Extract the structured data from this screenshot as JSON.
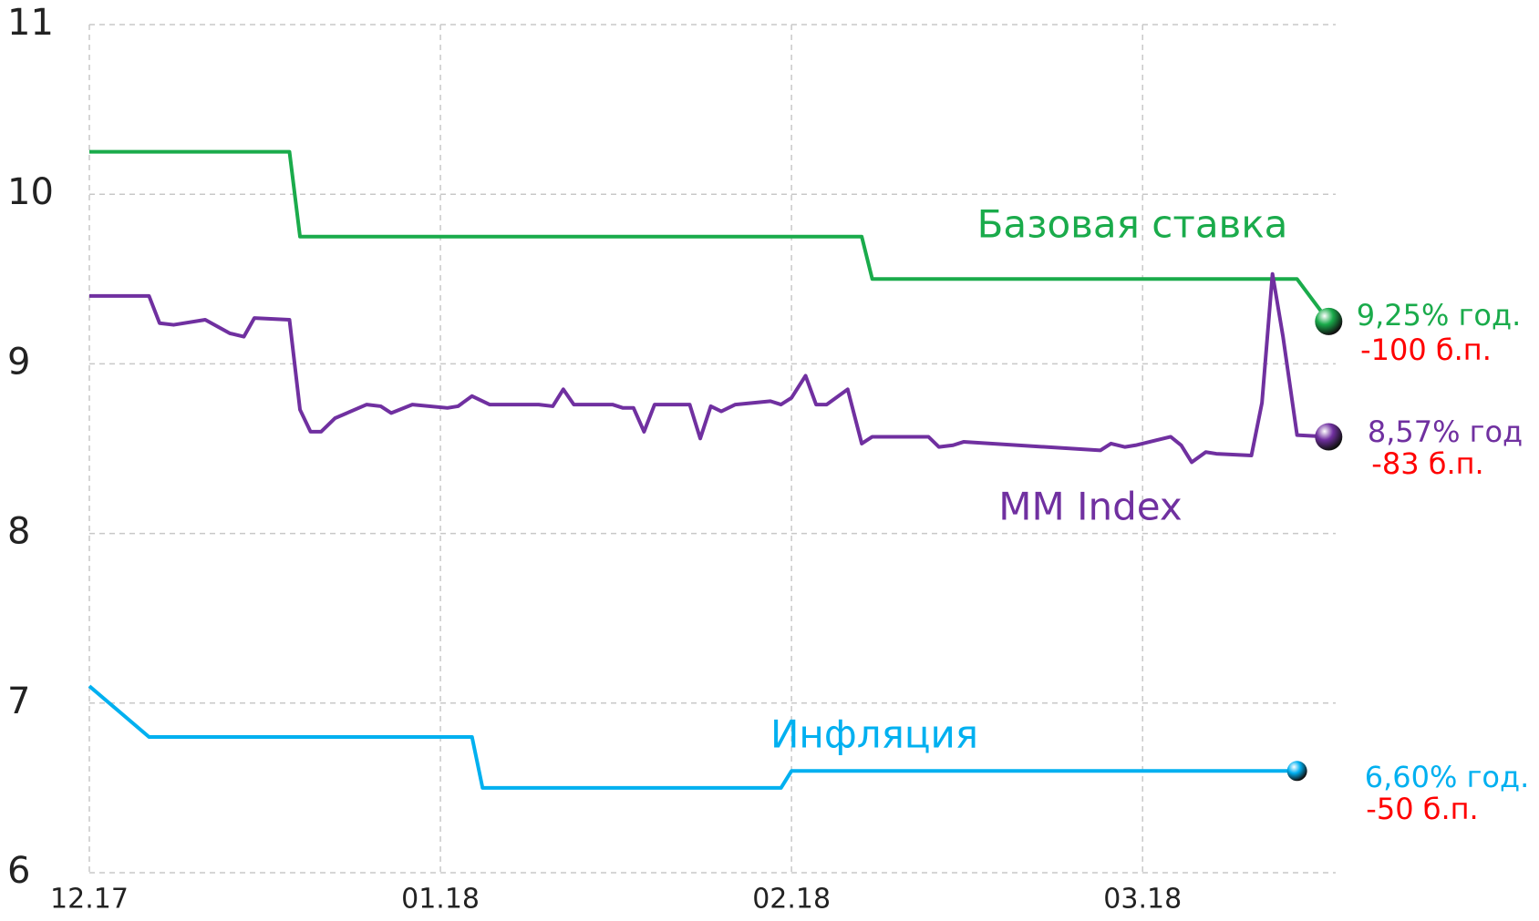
{
  "chart_data": {
    "type": "line",
    "xlim": [
      0,
      3.55
    ],
    "xticks": [
      {
        "value": 0,
        "label": "12.17"
      },
      {
        "value": 1,
        "label": "01.18"
      },
      {
        "value": 2,
        "label": "02.18"
      },
      {
        "value": 3,
        "label": "03.18"
      }
    ],
    "ylim": [
      6,
      11
    ],
    "yticks": [
      6,
      7,
      8,
      9,
      10,
      11
    ],
    "grid": true,
    "series": [
      {
        "name": "Базовая ставка",
        "color": "#1aab4b",
        "x": [
          0,
          0.57,
          0.6,
          2.2,
          2.23,
          3.44,
          3.53
        ],
        "values": [
          10.25,
          10.25,
          9.75,
          9.75,
          9.5,
          9.5,
          9.25
        ],
        "end_label": "9,25% год.",
        "change": "-100 б.п."
      },
      {
        "name": "MM Index",
        "color": "#7030a0",
        "x": [
          0,
          0.17,
          0.2,
          0.24,
          0.33,
          0.4,
          0.44,
          0.47,
          0.57,
          0.6,
          0.63,
          0.66,
          0.7,
          0.79,
          0.83,
          0.86,
          0.92,
          1.02,
          1.05,
          1.09,
          1.14,
          1.28,
          1.32,
          1.35,
          1.38,
          1.49,
          1.52,
          1.55,
          1.58,
          1.61,
          1.71,
          1.74,
          1.77,
          1.8,
          1.84,
          1.94,
          1.97,
          2.0,
          2.04,
          2.07,
          2.1,
          2.16,
          2.2,
          2.23,
          2.39,
          2.42,
          2.46,
          2.49,
          2.88,
          2.91,
          2.95,
          2.98,
          3.08,
          3.11,
          3.14,
          3.18,
          3.21,
          3.31,
          3.34,
          3.37,
          3.4,
          3.44,
          3.53
        ],
        "values": [
          9.4,
          9.4,
          9.24,
          9.23,
          9.26,
          9.18,
          9.16,
          9.27,
          9.26,
          8.73,
          8.6,
          8.6,
          8.68,
          8.76,
          8.75,
          8.71,
          8.76,
          8.74,
          8.75,
          8.81,
          8.76,
          8.76,
          8.75,
          8.85,
          8.76,
          8.76,
          8.74,
          8.74,
          8.6,
          8.76,
          8.76,
          8.56,
          8.75,
          8.72,
          8.76,
          8.78,
          8.76,
          8.8,
          8.93,
          8.76,
          8.76,
          8.85,
          8.53,
          8.57,
          8.57,
          8.51,
          8.52,
          8.54,
          8.49,
          8.53,
          8.51,
          8.52,
          8.57,
          8.52,
          8.42,
          8.48,
          8.47,
          8.46,
          8.77,
          9.53,
          9.16,
          8.58,
          8.57
        ],
        "end_label": "8,57% год",
        "change": "-83 б.п."
      },
      {
        "name": "Инфляция",
        "color": "#00b0f0",
        "x": [
          0,
          0.17,
          1.09,
          1.12,
          1.97,
          2.0,
          3.44
        ],
        "values": [
          7.1,
          6.8,
          6.8,
          6.5,
          6.5,
          6.6,
          6.6
        ],
        "end_label": "6,60% год.",
        "change": "-50 б.п."
      }
    ]
  }
}
